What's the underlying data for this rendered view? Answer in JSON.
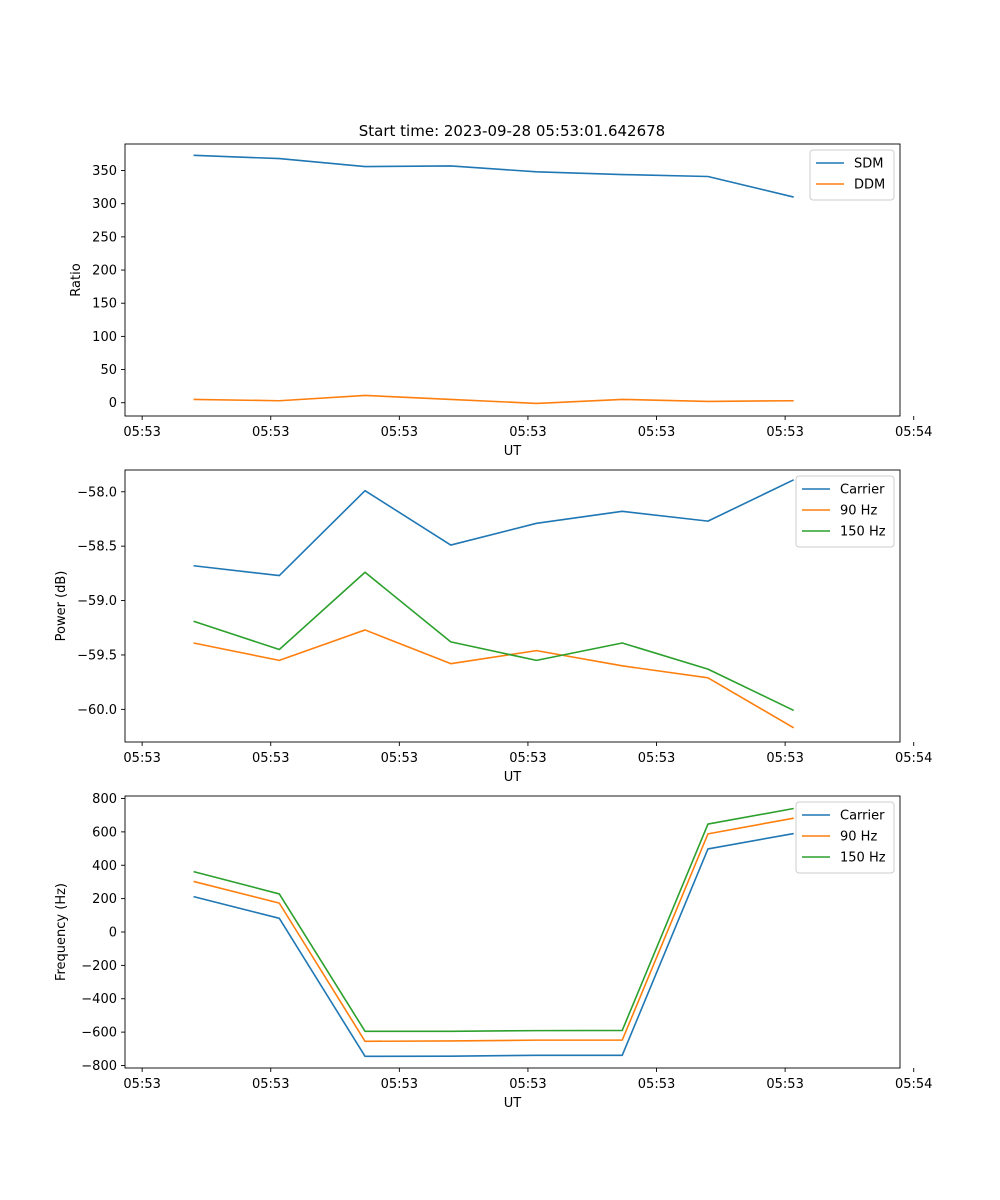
{
  "figure_title": "Start time: 2023-09-28 05:53:01.642678",
  "chart_data": [
    {
      "type": "line",
      "title": "Start time: 2023-09-28 05:53:01.642678",
      "xlabel": "UT",
      "ylabel": "Ratio",
      "x_tick_labels": [
        "05:53",
        "05:53",
        "05:53",
        "05:53",
        "05:53",
        "05:53",
        "05:54"
      ],
      "x": [
        1,
        2,
        3,
        4,
        5,
        6,
        7,
        8
      ],
      "xlim": [
        0.2,
        9.24
      ],
      "x_ticks": [
        0.4,
        1.9,
        3.4,
        4.9,
        6.4,
        7.9,
        9.4
      ],
      "ylim": [
        -20,
        390
      ],
      "y_ticks": [
        0,
        50,
        100,
        150,
        200,
        250,
        300,
        350
      ],
      "y_tick_labels": [
        "0",
        "50",
        "100",
        "150",
        "200",
        "250",
        "300",
        "350"
      ],
      "legend_position": "top-right",
      "series": [
        {
          "name": "SDM",
          "color": "#1f77b4",
          "values": [
            373,
            368,
            356,
            357,
            348,
            344,
            341,
            310
          ]
        },
        {
          "name": "DDM",
          "color": "#ff7f0e",
          "values": [
            5,
            3,
            11,
            5,
            -1,
            5,
            2,
            3
          ]
        }
      ]
    },
    {
      "type": "line",
      "xlabel": "UT",
      "ylabel": "Power (dB)",
      "x_tick_labels": [
        "05:53",
        "05:53",
        "05:53",
        "05:53",
        "05:53",
        "05:53",
        "05:54"
      ],
      "x": [
        1,
        2,
        3,
        4,
        5,
        6,
        7,
        8
      ],
      "xlim": [
        0.2,
        9.24
      ],
      "x_ticks": [
        0.4,
        1.9,
        3.4,
        4.9,
        6.4,
        7.9,
        9.4
      ],
      "ylim": [
        -60.3,
        -57.8
      ],
      "y_ticks": [
        -60.0,
        -59.5,
        -59.0,
        -58.5,
        -58.0
      ],
      "y_tick_labels": [
        "−60.0",
        "−59.5",
        "−59.0",
        "−58.5",
        "−58.0"
      ],
      "legend_position": "top-right",
      "series": [
        {
          "name": "Carrier",
          "color": "#1f77b4",
          "values": [
            -58.68,
            -58.77,
            -57.99,
            -58.49,
            -58.29,
            -58.18,
            -58.27,
            -57.89
          ]
        },
        {
          "name": "90 Hz",
          "color": "#ff7f0e",
          "values": [
            -59.39,
            -59.55,
            -59.27,
            -59.58,
            -59.46,
            -59.6,
            -59.71,
            -60.17
          ]
        },
        {
          "name": "150 Hz",
          "color": "#2ca02c",
          "values": [
            -59.19,
            -59.45,
            -58.74,
            -59.38,
            -59.55,
            -59.39,
            -59.63,
            -60.01
          ]
        }
      ]
    },
    {
      "type": "line",
      "xlabel": "UT",
      "ylabel": "Frequency (Hz)",
      "x_tick_labels": [
        "05:53",
        "05:53",
        "05:53",
        "05:53",
        "05:53",
        "05:53",
        "05:54"
      ],
      "x": [
        1,
        2,
        3,
        4,
        5,
        6,
        7,
        8
      ],
      "xlim": [
        0.2,
        9.24
      ],
      "x_ticks": [
        0.4,
        1.9,
        3.4,
        4.9,
        6.4,
        7.9,
        9.4
      ],
      "ylim": [
        -815,
        815
      ],
      "y_ticks": [
        -800,
        -600,
        -400,
        -200,
        0,
        200,
        400,
        600,
        800
      ],
      "y_tick_labels": [
        "−800",
        "−600",
        "−400",
        "−200",
        "0",
        "200",
        "400",
        "600",
        "800"
      ],
      "legend_position": "top-right",
      "series": [
        {
          "name": "Carrier",
          "color": "#1f77b4",
          "values": [
            212,
            82,
            -745,
            -744,
            -739,
            -739,
            498,
            590
          ]
        },
        {
          "name": "90 Hz",
          "color": "#ff7f0e",
          "values": [
            303,
            173,
            -655,
            -653,
            -648,
            -648,
            588,
            682
          ]
        },
        {
          "name": "150 Hz",
          "color": "#2ca02c",
          "values": [
            362,
            228,
            -595,
            -595,
            -591,
            -590,
            647,
            740
          ]
        }
      ]
    }
  ]
}
